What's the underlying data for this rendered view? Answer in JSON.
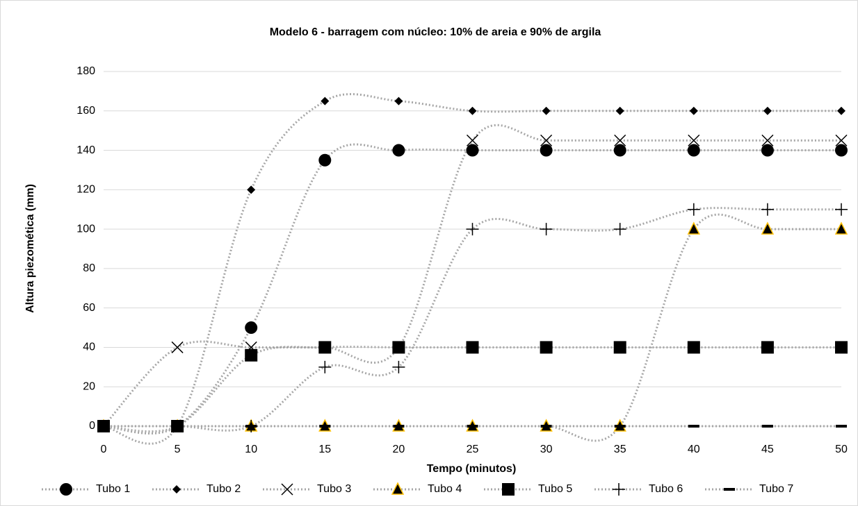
{
  "chart_data": {
    "type": "line",
    "title": "Modelo 6 - barragem com núcleo: 10% de areia e 90% de argila",
    "x_label": "Tempo (minutos)",
    "y_label": "Altura piezomética (mm)",
    "x": [
      0,
      5,
      10,
      15,
      20,
      25,
      30,
      35,
      40,
      45,
      50
    ],
    "xlim": [
      0,
      50
    ],
    "xticks": [
      0,
      5,
      10,
      15,
      20,
      25,
      30,
      35,
      40,
      45,
      50
    ],
    "ylim": [
      0,
      180
    ],
    "yticks": [
      0,
      20,
      40,
      60,
      80,
      100,
      120,
      140,
      160,
      180
    ],
    "grid": true,
    "smooth": true,
    "legend": "bottom",
    "line_color": "#a6a6a6",
    "series": [
      {
        "name": "Tubo 1",
        "marker": "circle",
        "color": "#000000",
        "values": [
          0,
          0,
          50,
          135,
          140,
          140,
          140,
          140,
          140,
          140,
          140
        ]
      },
      {
        "name": "Tubo 2",
        "marker": "diamond",
        "color": "#000000",
        "values": [
          0,
          0,
          120,
          165,
          165,
          160,
          160,
          160,
          160,
          160,
          160
        ]
      },
      {
        "name": "Tubo 3",
        "marker": "x",
        "color": "#000000",
        "values": [
          0,
          40,
          40,
          40,
          40,
          145,
          145,
          145,
          145,
          145,
          145
        ]
      },
      {
        "name": "Tubo 4",
        "marker": "triangle",
        "color": "#000000",
        "edge": "#ffc000",
        "values": [
          0,
          0,
          0,
          0,
          0,
          0,
          0,
          0,
          100,
          100,
          100
        ]
      },
      {
        "name": "Tubo 5",
        "marker": "square",
        "color": "#000000",
        "values": [
          0,
          0,
          36,
          40,
          40,
          40,
          40,
          40,
          40,
          40,
          40
        ]
      },
      {
        "name": "Tubo 6",
        "marker": "plus",
        "color": "#000000",
        "values": [
          0,
          0,
          0,
          30,
          30,
          100,
          100,
          100,
          110,
          110,
          110
        ]
      },
      {
        "name": "Tubo 7",
        "marker": "dash",
        "color": "#000000",
        "values": [
          0,
          0,
          0,
          0,
          0,
          0,
          0,
          0,
          0,
          0,
          0
        ]
      }
    ]
  }
}
